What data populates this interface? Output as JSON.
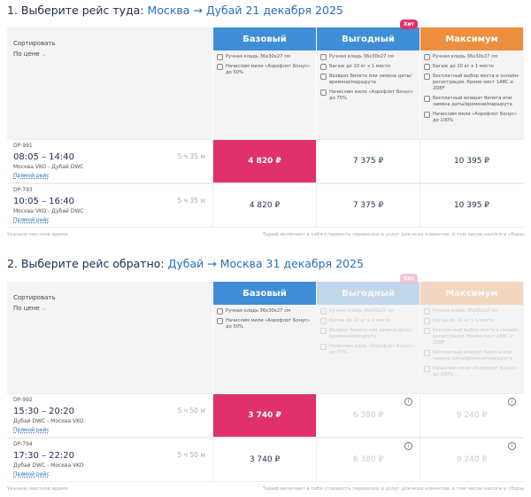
{
  "colors": {
    "basic": "#3f8ed8",
    "profit": "#3f8ed8",
    "max": "#ec8f3e",
    "selected": "#e0316c",
    "hit": "#e0316c"
  },
  "sections": [
    {
      "step": "1. Выберите рейс туда:",
      "route": "Москва → Дубай",
      "date": "21 декабря 2025",
      "sort_label": "Сортировать",
      "sort_value": "По цене",
      "fares": [
        {
          "name": "Базовый",
          "color": "#3f8ed8",
          "features": [
            {
              "icon": "hand-luggage-icon",
              "text": "Ручная кладь 36x30x27 см"
            },
            {
              "icon": "miles-icon",
              "text": "Начислим мили «Аэрофлот Бонус» до 50%"
            }
          ]
        },
        {
          "name": "Выгодный",
          "color": "#3f8ed8",
          "badge": "Хит",
          "features": [
            {
              "icon": "hand-luggage-icon",
              "text": "Ручная кладь 36x30x27 см"
            },
            {
              "icon": "baggage-icon",
              "text": "Багаж до 10 кг x 1 место"
            },
            {
              "icon": "refund-icon",
              "text": "Возврат билета или замена даты/времени/маршрута"
            },
            {
              "icon": "miles-icon",
              "text": "Начислим мили «Аэрофлот Бонус» до 75%"
            }
          ]
        },
        {
          "name": "Максимум",
          "color": "#ec8f3e",
          "features": [
            {
              "icon": "hand-luggage-icon",
              "text": "Ручная кладь 36x30x27 см"
            },
            {
              "icon": "baggage-icon",
              "text": "Багаж до 20 кг x 1 место"
            },
            {
              "icon": "seat-icon",
              "text": "Бесплатный выбор места и онлайн-регистрация. Кроме мест 1ABC и 2DEF"
            },
            {
              "icon": "refund-icon",
              "text": "Бесплатный возврат билета или замена даты/времени/маршрута"
            },
            {
              "icon": "miles-icon",
              "text": "Начислим мили «Аэрофлот Бонус» до 100%"
            }
          ]
        }
      ],
      "flights": [
        {
          "number": "DP-991",
          "time": "08:05 – 14:40",
          "route": "Москва VKO - Дубай DWC",
          "type": "Прямой рейс",
          "duration": "5 ч 35 м",
          "prices": [
            "4 820 ₽",
            "7 375 ₽",
            "10 395 ₽"
          ],
          "selected": 0
        },
        {
          "number": "DP-793",
          "time": "10:05 – 16:40",
          "route": "Москва VKO - Дубай DWC",
          "type": "Прямой рейс",
          "duration": "5 ч 35 м",
          "prices": [
            "4 820 ₽",
            "7 375 ₽",
            "10 395 ₽"
          ],
          "selected": null
        }
      ],
      "disabled_fares": [],
      "footer_left": "Указано местное время",
      "footer_right": "Тариф включает в себя стоимость перевозки и услуг для всех клиентов, в том числе налоги и сборы"
    },
    {
      "step": "2. Выберите рейс обратно:",
      "route": "Дубай → Москва",
      "date": "31 декабря 2025",
      "sort_label": "Сортировать",
      "sort_value": "По цене",
      "fares": [
        {
          "name": "Базовый",
          "color": "#3f8ed8",
          "features": [
            {
              "icon": "hand-luggage-icon",
              "text": "Ручная кладь 36x30x27 см"
            },
            {
              "icon": "miles-icon",
              "text": "Начислим мили «Аэрофлот Бонус» до 50%"
            }
          ]
        },
        {
          "name": "Выгодный",
          "color": "#3f8ed8",
          "badge": "Хит",
          "features": [
            {
              "icon": "hand-luggage-icon",
              "text": "Ручная кладь 36x30x27 см"
            },
            {
              "icon": "baggage-icon",
              "text": "Багаж до 10 кг x 1 место"
            },
            {
              "icon": "refund-icon",
              "text": "Возврат билета или замена даты/времени/маршрута"
            },
            {
              "icon": "miles-icon",
              "text": "Начислим мили «Аэрофлот Бонус» до 75%"
            }
          ]
        },
        {
          "name": "Максимум",
          "color": "#ec8f3e",
          "features": [
            {
              "icon": "hand-luggage-icon",
              "text": "Ручная кладь 36x30x27 см"
            },
            {
              "icon": "baggage-icon",
              "text": "Багаж до 20 кг x 1 место"
            },
            {
              "icon": "seat-icon",
              "text": "Бесплатный выбор места и онлайн-регистрация. Кроме мест 1ABC и 2DEF"
            },
            {
              "icon": "refund-icon",
              "text": "Бесплатный возврат билета или замена даты/времени/маршрута"
            },
            {
              "icon": "miles-icon",
              "text": "Начислим мили «Аэрофлот Бонус» до 100%"
            }
          ]
        }
      ],
      "flights": [
        {
          "number": "DP-992",
          "time": "15:30 – 20:20",
          "route": "Дубай DWC - Москва VKO",
          "type": "Прямой рейс",
          "duration": "5 ч 50 м",
          "prices": [
            "3 740 ₽",
            "6 380 ₽",
            "9 240 ₽"
          ],
          "selected": 0
        },
        {
          "number": "DP-794",
          "time": "17:30 – 22:20",
          "route": "Дубай DWC - Москва VKO",
          "type": "Прямой рейс",
          "duration": "5 ч 50 м",
          "prices": [
            "3 740 ₽",
            "6 380 ₽",
            "9 240 ₽"
          ],
          "selected": null
        }
      ],
      "disabled_fares": [
        1,
        2
      ],
      "footer_left": "Указано местное время",
      "footer_right": "Тариф включает в себя стоимость перевозки и услуг для всех клиентов, в том числе налоги и сборы"
    }
  ]
}
